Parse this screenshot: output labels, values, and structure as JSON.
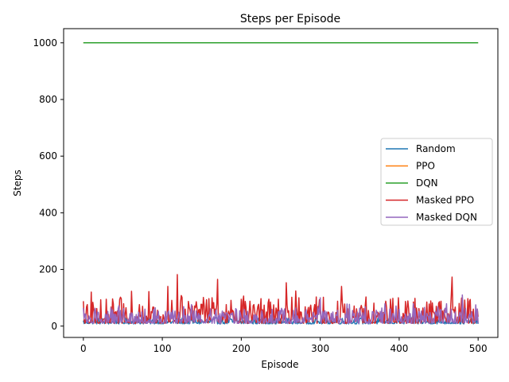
{
  "chart_data": {
    "type": "line",
    "title": "Steps per Episode",
    "xlabel": "Episode",
    "ylabel": "Steps",
    "xlim": [
      -25,
      525
    ],
    "ylim": [
      -40,
      1050
    ],
    "xticks": [
      0,
      100,
      200,
      300,
      400,
      500
    ],
    "yticks": [
      0,
      200,
      400,
      600,
      800,
      1000
    ],
    "grid": false,
    "legend_position": "center-right",
    "n_episodes": 501,
    "series": [
      {
        "name": "Random",
        "color": "#1f77b4",
        "typical_range": [
          8,
          30
        ],
        "mean": 17
      },
      {
        "name": "PPO",
        "color": "#ff7f0e",
        "constant": 1000
      },
      {
        "name": "DQN",
        "color": "#2ca02c",
        "constant": 1000
      },
      {
        "name": "Masked PPO",
        "color": "#d62728",
        "typical_range": [
          10,
          180
        ],
        "mean": 45,
        "notable_peaks": [
          {
            "x": 10,
            "y": 120
          },
          {
            "x": 107,
            "y": 140
          },
          {
            "x": 119,
            "y": 182
          },
          {
            "x": 170,
            "y": 165
          },
          {
            "x": 257,
            "y": 153
          },
          {
            "x": 327,
            "y": 140
          },
          {
            "x": 467,
            "y": 173
          }
        ]
      },
      {
        "name": "Masked DQN",
        "color": "#9467bd",
        "typical_range": [
          10,
          110
        ],
        "mean": 38,
        "notable_peaks": [
          {
            "x": 300,
            "y": 100
          },
          {
            "x": 480,
            "y": 110
          }
        ]
      }
    ]
  }
}
